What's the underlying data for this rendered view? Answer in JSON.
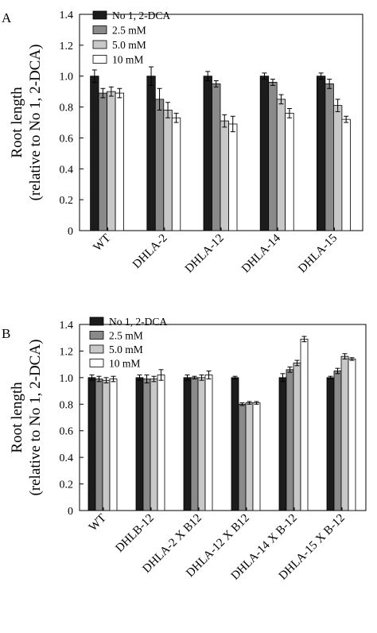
{
  "figure": {
    "panels": [
      "A",
      "B"
    ]
  },
  "colors": {
    "series": [
      "#1c1c1c",
      "#8a8a8a",
      "#c8c8c8",
      "#ffffff"
    ],
    "stroke": "#000000"
  },
  "chart_data": [
    {
      "type": "bar",
      "panel": "A",
      "ylabel_line1": "Root length",
      "ylabel_line2": "(relative to No 1, 2-DCA)",
      "xlabel": "",
      "ylim": [
        0,
        1.4
      ],
      "yticks": [
        "0",
        "0.2",
        "0.4",
        "0.6",
        "0.8",
        "1.0",
        "1.2",
        "1.4"
      ],
      "grid": false,
      "legend_position": "top-left",
      "categories": [
        "WT",
        "DHLA-2",
        "DHLA-12",
        "DHLA-14",
        "DHLA-15"
      ],
      "series": [
        {
          "name": "No 1, 2-DCA",
          "values": [
            1.0,
            1.0,
            1.0,
            1.0,
            1.0
          ],
          "errors": [
            0.04,
            0.06,
            0.03,
            0.02,
            0.02
          ]
        },
        {
          "name": "2.5 mM",
          "values": [
            0.89,
            0.85,
            0.95,
            0.96,
            0.95
          ],
          "errors": [
            0.03,
            0.07,
            0.02,
            0.02,
            0.03
          ]
        },
        {
          "name": "5.0 mM",
          "values": [
            0.9,
            0.78,
            0.71,
            0.85,
            0.81
          ],
          "errors": [
            0.03,
            0.05,
            0.04,
            0.03,
            0.04
          ]
        },
        {
          "name": "10 mM",
          "values": [
            0.89,
            0.73,
            0.69,
            0.76,
            0.72
          ],
          "errors": [
            0.03,
            0.03,
            0.05,
            0.03,
            0.02
          ]
        }
      ]
    },
    {
      "type": "bar",
      "panel": "B",
      "ylabel_line1": "Root length",
      "ylabel_line2": "(relative to No 1, 2-DCA)",
      "xlabel": "",
      "ylim": [
        0,
        1.4
      ],
      "yticks": [
        "0",
        "0.2",
        "0.4",
        "0.6",
        "0.8",
        "1.0",
        "1.2",
        "1.4"
      ],
      "grid": false,
      "legend_position": "top-left",
      "categories": [
        "WT",
        "DHLB-12",
        "DHLA-2 X B12",
        "DHLA-12 X B12",
        "DHLA-14 X B-12",
        "DHLA-15 X B-12"
      ],
      "series": [
        {
          "name": "No 1, 2-DCA",
          "values": [
            1.0,
            1.0,
            1.0,
            1.0,
            1.0,
            1.0
          ],
          "errors": [
            0.02,
            0.02,
            0.02,
            0.01,
            0.03,
            0.01
          ]
        },
        {
          "name": "2.5 mM",
          "values": [
            0.99,
            0.99,
            1.0,
            0.8,
            1.06,
            1.05
          ],
          "errors": [
            0.02,
            0.03,
            0.01,
            0.01,
            0.02,
            0.02
          ]
        },
        {
          "name": "5.0 mM",
          "values": [
            0.98,
            0.99,
            1.0,
            0.81,
            1.11,
            1.16
          ],
          "errors": [
            0.02,
            0.02,
            0.02,
            0.01,
            0.02,
            0.02
          ]
        },
        {
          "name": "10 mM",
          "values": [
            0.99,
            1.02,
            1.02,
            0.81,
            1.29,
            1.14
          ],
          "errors": [
            0.02,
            0.04,
            0.03,
            0.01,
            0.02,
            0.01
          ]
        }
      ]
    }
  ]
}
